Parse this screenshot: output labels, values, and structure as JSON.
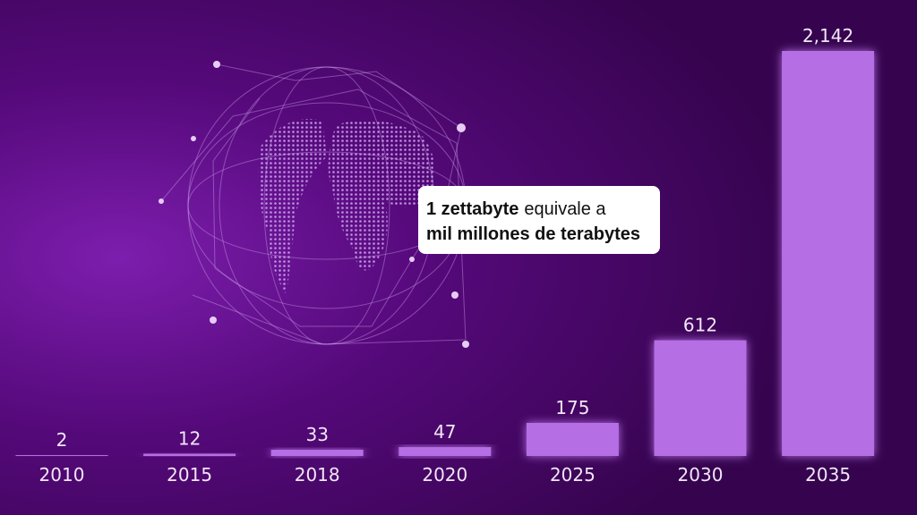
{
  "chart_data": {
    "type": "bar",
    "categories": [
      "2010",
      "2015",
      "2018",
      "2020",
      "2025",
      "2030",
      "2035"
    ],
    "values": [
      2,
      12,
      33,
      47,
      175,
      612,
      2142
    ],
    "value_labels": [
      "2",
      "12",
      "33",
      "47",
      "175",
      "612",
      "2,142"
    ],
    "color": "#b56ee3",
    "annotation": {
      "line1_bold": "1 zettabyte",
      "line1_rest": "equivale a",
      "line2": "mil millones de terabytes"
    }
  }
}
